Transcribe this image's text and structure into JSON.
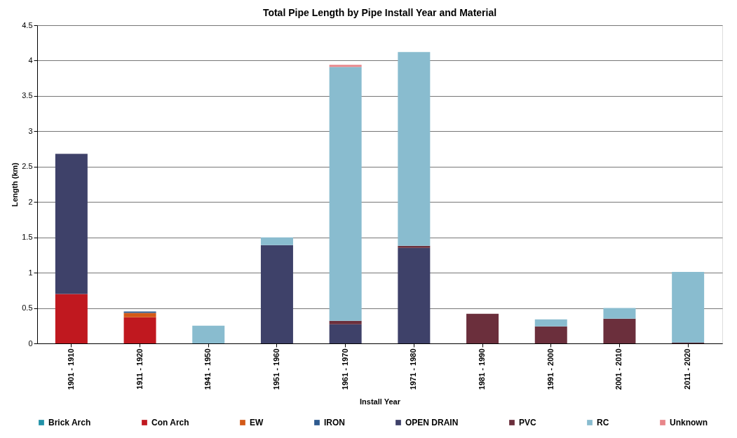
{
  "chart_data": {
    "type": "bar",
    "stacked": true,
    "title": "Total Pipe Length by Pipe Install Year and Material",
    "xlabel": "Install Year",
    "ylabel": "Length (km)",
    "categories": [
      "1901 - 1910",
      "1911 - 1920",
      "1941 - 1950",
      "1951 - 1960",
      "1961 - 1970",
      "1971 - 1980",
      "1981 - 1990",
      "1991 - 2000",
      "2001 - 2010",
      "2011 - 2020"
    ],
    "series": [
      {
        "name": "Brick Arch",
        "color": "#2292a8",
        "values": [
          null,
          null,
          null,
          null,
          null,
          null,
          null,
          null,
          null,
          null
        ]
      },
      {
        "name": "Con Arch",
        "color": "#c0181f",
        "values": [
          0.7,
          0.37,
          null,
          null,
          null,
          null,
          null,
          null,
          null,
          null
        ]
      },
      {
        "name": "EW",
        "color": "#d35a18",
        "values": [
          null,
          0.06,
          null,
          null,
          null,
          null,
          null,
          null,
          null,
          null
        ]
      },
      {
        "name": "IRON",
        "color": "#2e5a8f",
        "values": [
          null,
          0.02,
          null,
          null,
          null,
          null,
          null,
          null,
          null,
          null
        ]
      },
      {
        "name": "OPEN DRAIN",
        "color": "#3e4169",
        "values": [
          1.98,
          null,
          null,
          1.39,
          0.27,
          1.35,
          null,
          null,
          null,
          null
        ]
      },
      {
        "name": "PVC",
        "color": "#6b2f3c",
        "values": [
          null,
          null,
          null,
          null,
          0.05,
          0.03,
          0.42,
          0.24,
          0.35,
          0.01
        ]
      },
      {
        "name": "RC",
        "color": "#89bccf",
        "values": [
          null,
          null,
          0.25,
          0.11,
          3.59,
          2.74,
          null,
          0.1,
          0.15,
          1.0
        ]
      },
      {
        "name": "Unknown",
        "color": "#e8868a",
        "values": [
          null,
          null,
          null,
          null,
          0.03,
          null,
          null,
          null,
          null,
          null
        ]
      }
    ],
    "ylim": [
      0,
      4.5
    ],
    "yticks": [
      0,
      0.5,
      1,
      1.5,
      2,
      2.5,
      3,
      3.5,
      4,
      4.5
    ],
    "grid": "y",
    "legend": "bottom"
  }
}
